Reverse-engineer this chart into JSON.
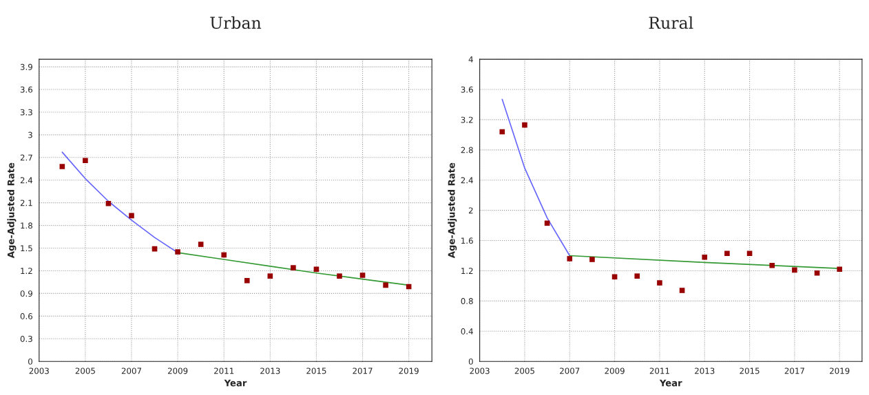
{
  "chart_data": [
    {
      "type": "scatter",
      "title": "Urban",
      "xlabel": "Year",
      "ylabel": "Age-Adjusted Rate",
      "xlim": [
        2003,
        2020
      ],
      "xticks": [
        2003,
        2005,
        2007,
        2009,
        2011,
        2013,
        2015,
        2017,
        2019
      ],
      "ylim": [
        0,
        4
      ],
      "yticks": [
        0,
        0.3,
        0.6,
        0.9,
        1.2,
        1.5,
        1.8,
        2.1,
        2.4,
        2.7,
        3,
        3.3,
        3.6,
        3.9
      ],
      "grid": true,
      "legend": false,
      "series": [
        {
          "marker": "square",
          "color": "#990000",
          "x": [
            2004,
            2005,
            2006,
            2007,
            2008,
            2009,
            2010,
            2011,
            2012,
            2013,
            2014,
            2015,
            2016,
            2017,
            2018,
            2019
          ],
          "values": [
            2.58,
            2.66,
            2.09,
            1.93,
            1.49,
            1.45,
            1.55,
            1.41,
            1.07,
            1.13,
            1.24,
            1.22,
            1.13,
            1.14,
            1.01,
            0.99
          ]
        },
        {
          "type": "line",
          "marker": "none",
          "line_style": "solid",
          "color": "#6666ff",
          "x": [
            2004,
            2005,
            2006,
            2007,
            2008,
            2009
          ],
          "values": [
            2.77,
            2.42,
            2.12,
            1.87,
            1.64,
            1.44
          ]
        },
        {
          "type": "line",
          "marker": "none",
          "line_style": "solid",
          "color": "#339933",
          "x": [
            2009,
            2011,
            2013,
            2015,
            2017,
            2019
          ],
          "values": [
            1.44,
            1.35,
            1.26,
            1.17,
            1.09,
            1.01
          ]
        }
      ]
    },
    {
      "type": "scatter",
      "title": "Rural",
      "xlabel": "Year",
      "ylabel": "Age-Adjusted Rate",
      "xlim": [
        2003,
        2020
      ],
      "xticks": [
        2003,
        2005,
        2007,
        2009,
        2011,
        2013,
        2015,
        2017,
        2019
      ],
      "ylim": [
        0,
        4
      ],
      "yticks": [
        0,
        0.4,
        0.8,
        1.2,
        1.6,
        2,
        2.4,
        2.8,
        3.2,
        3.6,
        4
      ],
      "grid": true,
      "legend": false,
      "series": [
        {
          "marker": "square",
          "color": "#990000",
          "x": [
            2004,
            2005,
            2006,
            2007,
            2008,
            2009,
            2010,
            2011,
            2012,
            2013,
            2014,
            2015,
            2016,
            2017,
            2018,
            2019
          ],
          "values": [
            3.04,
            3.13,
            1.83,
            1.36,
            1.35,
            1.12,
            1.13,
            1.04,
            0.94,
            1.38,
            1.43,
            1.43,
            1.27,
            1.21,
            1.17,
            1.22
          ]
        },
        {
          "type": "line",
          "marker": "none",
          "line_style": "solid",
          "color": "#6666ff",
          "x": [
            2004,
            2005,
            2006,
            2007
          ],
          "values": [
            3.47,
            2.56,
            1.9,
            1.4
          ]
        },
        {
          "type": "line",
          "marker": "none",
          "line_style": "solid",
          "color": "#339933",
          "x": [
            2007,
            2013,
            2019
          ],
          "values": [
            1.4,
            1.31,
            1.23
          ]
        }
      ]
    }
  ]
}
